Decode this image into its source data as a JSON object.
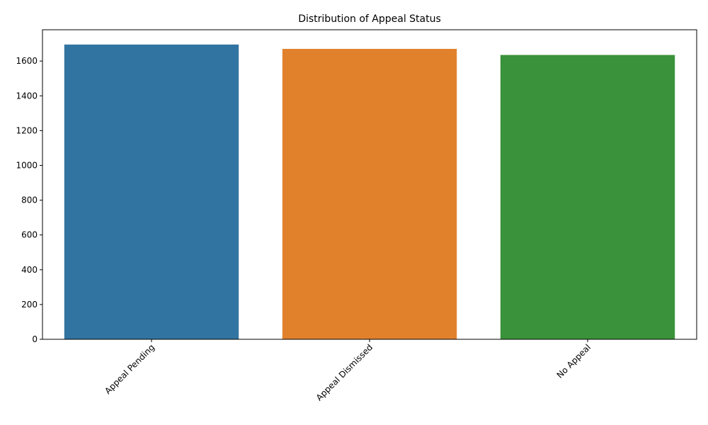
{
  "chart_data": {
    "type": "bar",
    "title": "Distribution of Appeal Status",
    "xlabel": "",
    "ylabel": "",
    "categories": [
      "Appeal Pending",
      "Appeal Dismissed",
      "No Appeal"
    ],
    "values": [
      1695,
      1670,
      1635
    ],
    "colors": [
      "#3274a1",
      "#e1812c",
      "#3a923a"
    ],
    "ylim": [
      0,
      1780
    ],
    "yticks": [
      0,
      200,
      400,
      600,
      800,
      1000,
      1200,
      1400,
      1600
    ],
    "x_tick_rotation": 45,
    "grid": false,
    "legend": "none"
  }
}
